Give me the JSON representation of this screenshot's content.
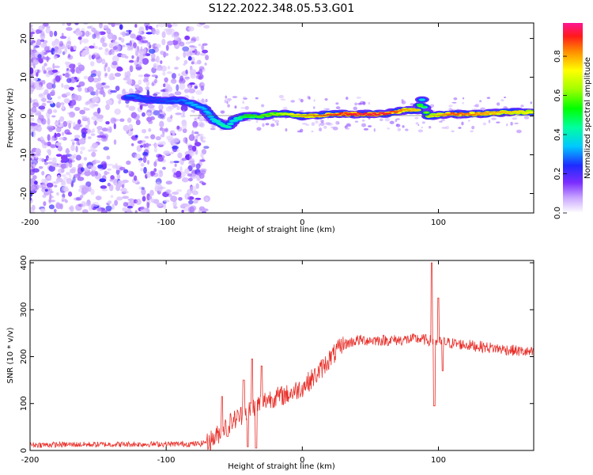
{
  "title": "S122.2022.348.05.53.G01",
  "colors": {
    "snr_line": "#e8302a",
    "ridge": "#5a10e0",
    "scatter": "#7a3cf0"
  },
  "chart_data": [
    {
      "type": "heatmap",
      "name": "spectrogram",
      "xlabel": "Height of straight line (km)",
      "ylabel": "Frequency (Hz)",
      "xlim": [
        -200,
        170
      ],
      "ylim": [
        -25,
        24
      ],
      "xticks": [
        "-200",
        "-100",
        "0",
        "100"
      ],
      "xtick_values": [
        -200,
        -100,
        0,
        100
      ],
      "yticks": [
        "-20",
        "-10",
        "0",
        "10",
        "20"
      ],
      "ytick_values": [
        -20,
        -10,
        0,
        10,
        20
      ],
      "colorbar": {
        "label": "Normalized spectral amplitude",
        "range": [
          0,
          0.97
        ],
        "ticks": [
          "0.0",
          "0.2",
          "0.4",
          "0.6",
          "0.8"
        ],
        "tick_values": [
          0.0,
          0.2,
          0.4,
          0.6,
          0.8
        ]
      },
      "ridge": [
        {
          "x": -125,
          "y": 5,
          "a": 0.3
        },
        {
          "x": -110,
          "y": 4,
          "a": 0.25
        },
        {
          "x": -88,
          "y": 4,
          "a": 0.3
        },
        {
          "x": -80,
          "y": 3,
          "a": 0.35
        },
        {
          "x": -72,
          "y": 2,
          "a": 0.35
        },
        {
          "x": -65,
          "y": -1,
          "a": 0.4
        },
        {
          "x": -60,
          "y": -2,
          "a": 0.45
        },
        {
          "x": -55,
          "y": -3,
          "a": 0.45
        },
        {
          "x": -50,
          "y": -1,
          "a": 0.4
        },
        {
          "x": -42,
          "y": 0,
          "a": 0.55
        },
        {
          "x": -30,
          "y": 0,
          "a": 0.6
        },
        {
          "x": -20,
          "y": 0.5,
          "a": 0.65
        },
        {
          "x": -10,
          "y": 0.5,
          "a": 0.7
        },
        {
          "x": 0,
          "y": 0,
          "a": 0.8
        },
        {
          "x": 10,
          "y": 0,
          "a": 0.85
        },
        {
          "x": 20,
          "y": 0.5,
          "a": 0.9
        },
        {
          "x": 40,
          "y": 0.5,
          "a": 0.95
        },
        {
          "x": 60,
          "y": 0.5,
          "a": 0.95
        },
        {
          "x": 75,
          "y": 1.5,
          "a": 0.85
        },
        {
          "x": 85,
          "y": 1.5,
          "a": 0.8
        },
        {
          "x": 88,
          "y": 4,
          "a": 0.4
        },
        {
          "x": 92,
          "y": 0,
          "a": 0.7
        },
        {
          "x": 110,
          "y": 0.5,
          "a": 0.9
        },
        {
          "x": 130,
          "y": 0.5,
          "a": 0.85
        },
        {
          "x": 150,
          "y": 1,
          "a": 0.8
        },
        {
          "x": 170,
          "y": 1,
          "a": 0.75
        }
      ]
    },
    {
      "type": "line",
      "name": "snr",
      "xlabel": "Height of straight line (km)",
      "ylabel": "SNR (10 * v/v)",
      "xlim": [
        -200,
        170
      ],
      "ylim": [
        0,
        405
      ],
      "xticks": [
        "-200",
        "-100",
        "0",
        "100"
      ],
      "xtick_values": [
        -200,
        -100,
        0,
        100
      ],
      "yticks": [
        "0",
        "100",
        "200",
        "300",
        "400"
      ],
      "ytick_values": [
        0,
        100,
        200,
        300,
        400
      ],
      "trend": [
        {
          "x": -200,
          "y": 12
        },
        {
          "x": -75,
          "y": 14
        },
        {
          "x": -65,
          "y": 25
        },
        {
          "x": -55,
          "y": 55
        },
        {
          "x": -45,
          "y": 75
        },
        {
          "x": -35,
          "y": 95
        },
        {
          "x": -25,
          "y": 110
        },
        {
          "x": -10,
          "y": 120
        },
        {
          "x": 0,
          "y": 135
        },
        {
          "x": 10,
          "y": 160
        },
        {
          "x": 20,
          "y": 195
        },
        {
          "x": 30,
          "y": 225
        },
        {
          "x": 40,
          "y": 235
        },
        {
          "x": 70,
          "y": 235
        },
        {
          "x": 85,
          "y": 238
        },
        {
          "x": 100,
          "y": 232
        },
        {
          "x": 120,
          "y": 225
        },
        {
          "x": 150,
          "y": 215
        },
        {
          "x": 170,
          "y": 208
        }
      ],
      "spikes": [
        {
          "x": -59,
          "y": 115
        },
        {
          "x": -55,
          "y": 30
        },
        {
          "x": -43,
          "y": 150
        },
        {
          "x": -40,
          "y": 8
        },
        {
          "x": -37,
          "y": 195
        },
        {
          "x": -34,
          "y": 5
        },
        {
          "x": -30,
          "y": 180
        },
        {
          "x": 95,
          "y": 400
        },
        {
          "x": 97,
          "y": 95
        },
        {
          "x": 100,
          "y": 325
        },
        {
          "x": 103,
          "y": 170
        }
      ]
    }
  ]
}
